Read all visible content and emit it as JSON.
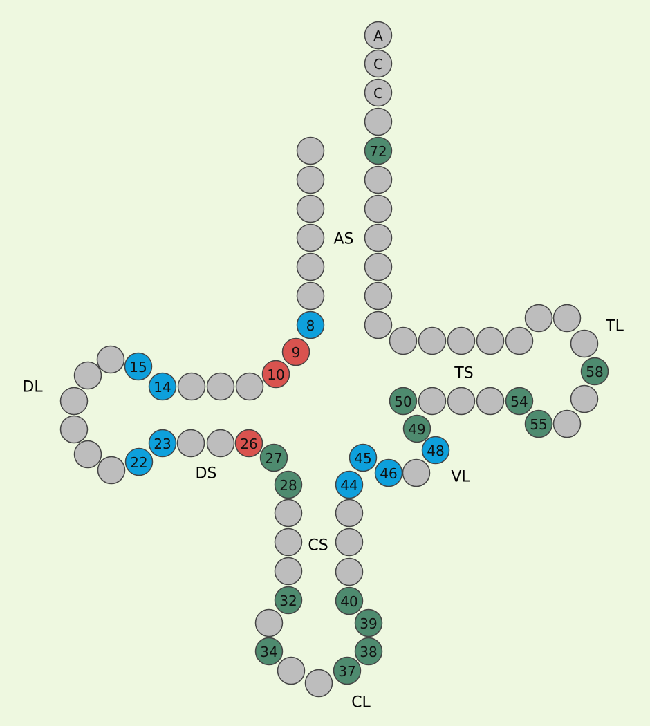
{
  "colors": {
    "background": "#eef8e0",
    "default": "#bdbdbd",
    "blue": "#0ea0dc",
    "green": "#4e8b6f",
    "red": "#d9534f"
  },
  "regions": [
    {
      "id": "as",
      "label": "AS"
    },
    {
      "id": "tl",
      "label": "TL"
    },
    {
      "id": "ts",
      "label": "TS"
    },
    {
      "id": "dl",
      "label": "DL"
    },
    {
      "id": "ds",
      "label": "DS"
    },
    {
      "id": "vl",
      "label": "VL"
    },
    {
      "id": "cs",
      "label": "CS"
    },
    {
      "id": "cl",
      "label": "CL"
    }
  ],
  "nucleotides": [
    {
      "label": "A",
      "color": "default"
    },
    {
      "label": "C",
      "color": "default"
    },
    {
      "label": "C",
      "color": "default"
    },
    {
      "label": "",
      "color": "default"
    },
    {
      "label": "72",
      "color": "green"
    },
    {
      "label": "",
      "color": "default"
    },
    {
      "label": "",
      "color": "default"
    },
    {
      "label": "",
      "color": "default"
    },
    {
      "label": "",
      "color": "default"
    },
    {
      "label": "",
      "color": "default"
    },
    {
      "label": "",
      "color": "default"
    },
    {
      "label": "",
      "color": "default"
    },
    {
      "label": "",
      "color": "default"
    },
    {
      "label": "",
      "color": "default"
    },
    {
      "label": "",
      "color": "default"
    },
    {
      "label": "",
      "color": "default"
    },
    {
      "label": "",
      "color": "default"
    },
    {
      "label": "",
      "color": "default"
    },
    {
      "label": "",
      "color": "default"
    },
    {
      "label": "58",
      "color": "green"
    },
    {
      "label": "",
      "color": "default"
    },
    {
      "label": "",
      "color": "default"
    },
    {
      "label": "55",
      "color": "green"
    },
    {
      "label": "54",
      "color": "green"
    },
    {
      "label": "",
      "color": "default"
    },
    {
      "label": "",
      "color": "default"
    },
    {
      "label": "",
      "color": "default"
    },
    {
      "label": "50",
      "color": "green"
    },
    {
      "label": "49",
      "color": "green"
    },
    {
      "label": "48",
      "color": "blue"
    },
    {
      "label": "",
      "color": "default"
    },
    {
      "label": "46",
      "color": "blue"
    },
    {
      "label": "45",
      "color": "blue"
    },
    {
      "label": "44",
      "color": "blue"
    },
    {
      "label": "",
      "color": "default"
    },
    {
      "label": "",
      "color": "default"
    },
    {
      "label": "",
      "color": "default"
    },
    {
      "label": "40",
      "color": "green"
    },
    {
      "label": "39",
      "color": "green"
    },
    {
      "label": "38",
      "color": "green"
    },
    {
      "label": "37",
      "color": "green"
    },
    {
      "label": "",
      "color": "default"
    },
    {
      "label": "",
      "color": "default"
    },
    {
      "label": "34",
      "color": "green"
    },
    {
      "label": "",
      "color": "default"
    },
    {
      "label": "32",
      "color": "green"
    },
    {
      "label": "",
      "color": "default"
    },
    {
      "label": "",
      "color": "default"
    },
    {
      "label": "",
      "color": "default"
    },
    {
      "label": "28",
      "color": "green"
    },
    {
      "label": "27",
      "color": "green"
    },
    {
      "label": "26",
      "color": "red"
    },
    {
      "label": "",
      "color": "default"
    },
    {
      "label": "",
      "color": "default"
    },
    {
      "label": "23",
      "color": "blue"
    },
    {
      "label": "22",
      "color": "blue"
    },
    {
      "label": "",
      "color": "default"
    },
    {
      "label": "",
      "color": "default"
    },
    {
      "label": "",
      "color": "default"
    },
    {
      "label": "",
      "color": "default"
    },
    {
      "label": "",
      "color": "default"
    },
    {
      "label": "",
      "color": "default"
    },
    {
      "label": "15",
      "color": "blue"
    },
    {
      "label": "14",
      "color": "blue"
    },
    {
      "label": "",
      "color": "default"
    },
    {
      "label": "",
      "color": "default"
    },
    {
      "label": "",
      "color": "default"
    },
    {
      "label": "10",
      "color": "red"
    },
    {
      "label": "9",
      "color": "red"
    },
    {
      "label": "8",
      "color": "blue"
    },
    {
      "label": "",
      "color": "default"
    },
    {
      "label": "",
      "color": "default"
    },
    {
      "label": "",
      "color": "default"
    },
    {
      "label": "",
      "color": "default"
    },
    {
      "label": "",
      "color": "default"
    },
    {
      "label": "",
      "color": "default"
    },
    {
      "label": "",
      "color": "default"
    }
  ]
}
